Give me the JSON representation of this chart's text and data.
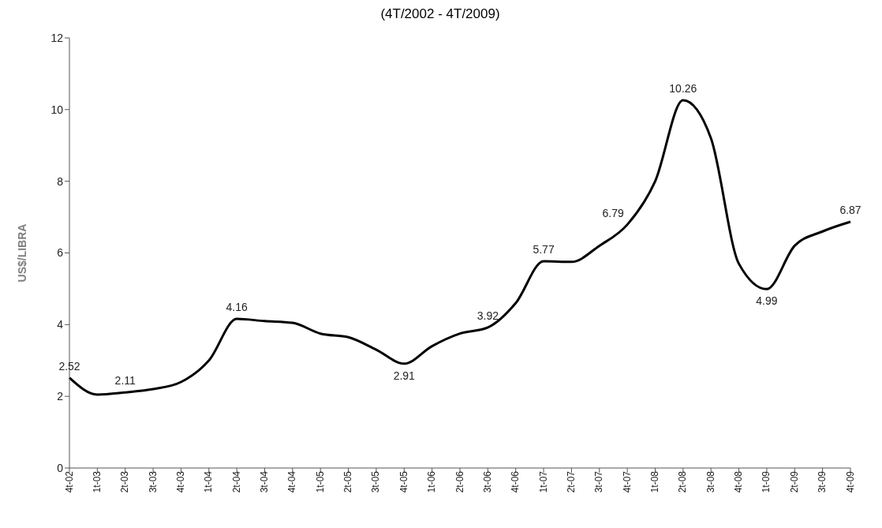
{
  "chart_data": {
    "type": "line",
    "title": "(4T/2002 - 4T/2009)",
    "ylabel": "US$/LIBRA",
    "categories": [
      "4t-02",
      "1t-03",
      "2t-03",
      "3t-03",
      "4t-03",
      "1t-04",
      "2t-04",
      "3t-04",
      "4t-04",
      "1t-05",
      "2t-05",
      "3t-05",
      "4t-05",
      "1t-06",
      "2t-06",
      "3t-06",
      "4t-06",
      "1t-07",
      "2t-07",
      "3t-07",
      "4t-07",
      "1t-08",
      "2t-08",
      "3t-08",
      "4t-08",
      "1t-09",
      "2t-09",
      "3t-09",
      "4t-09"
    ],
    "series": [
      {
        "color": "#000000",
        "values": [
          2.52,
          2.05,
          2.11,
          2.2,
          2.4,
          3.0,
          4.16,
          4.1,
          4.05,
          3.75,
          3.65,
          3.3,
          2.91,
          3.4,
          3.75,
          3.92,
          4.6,
          5.77,
          5.75,
          6.2,
          6.79,
          8.0,
          10.26,
          9.2,
          5.7,
          4.99,
          6.2,
          6.6,
          6.87
        ],
        "value_labels": [
          "2.52",
          null,
          "2.11",
          null,
          null,
          null,
          "4.16",
          null,
          null,
          null,
          null,
          null,
          "2.91",
          null,
          null,
          "3.92",
          null,
          "5.77",
          null,
          null,
          "6.79",
          null,
          "10.26",
          null,
          null,
          "4.99",
          null,
          null,
          "6.87"
        ]
      }
    ],
    "ylim": [
      0,
      12
    ],
    "yticks": [
      0,
      2,
      4,
      6,
      8,
      10,
      12
    ],
    "grid": false,
    "legend": false,
    "marker": "none",
    "line_style": "solid"
  }
}
